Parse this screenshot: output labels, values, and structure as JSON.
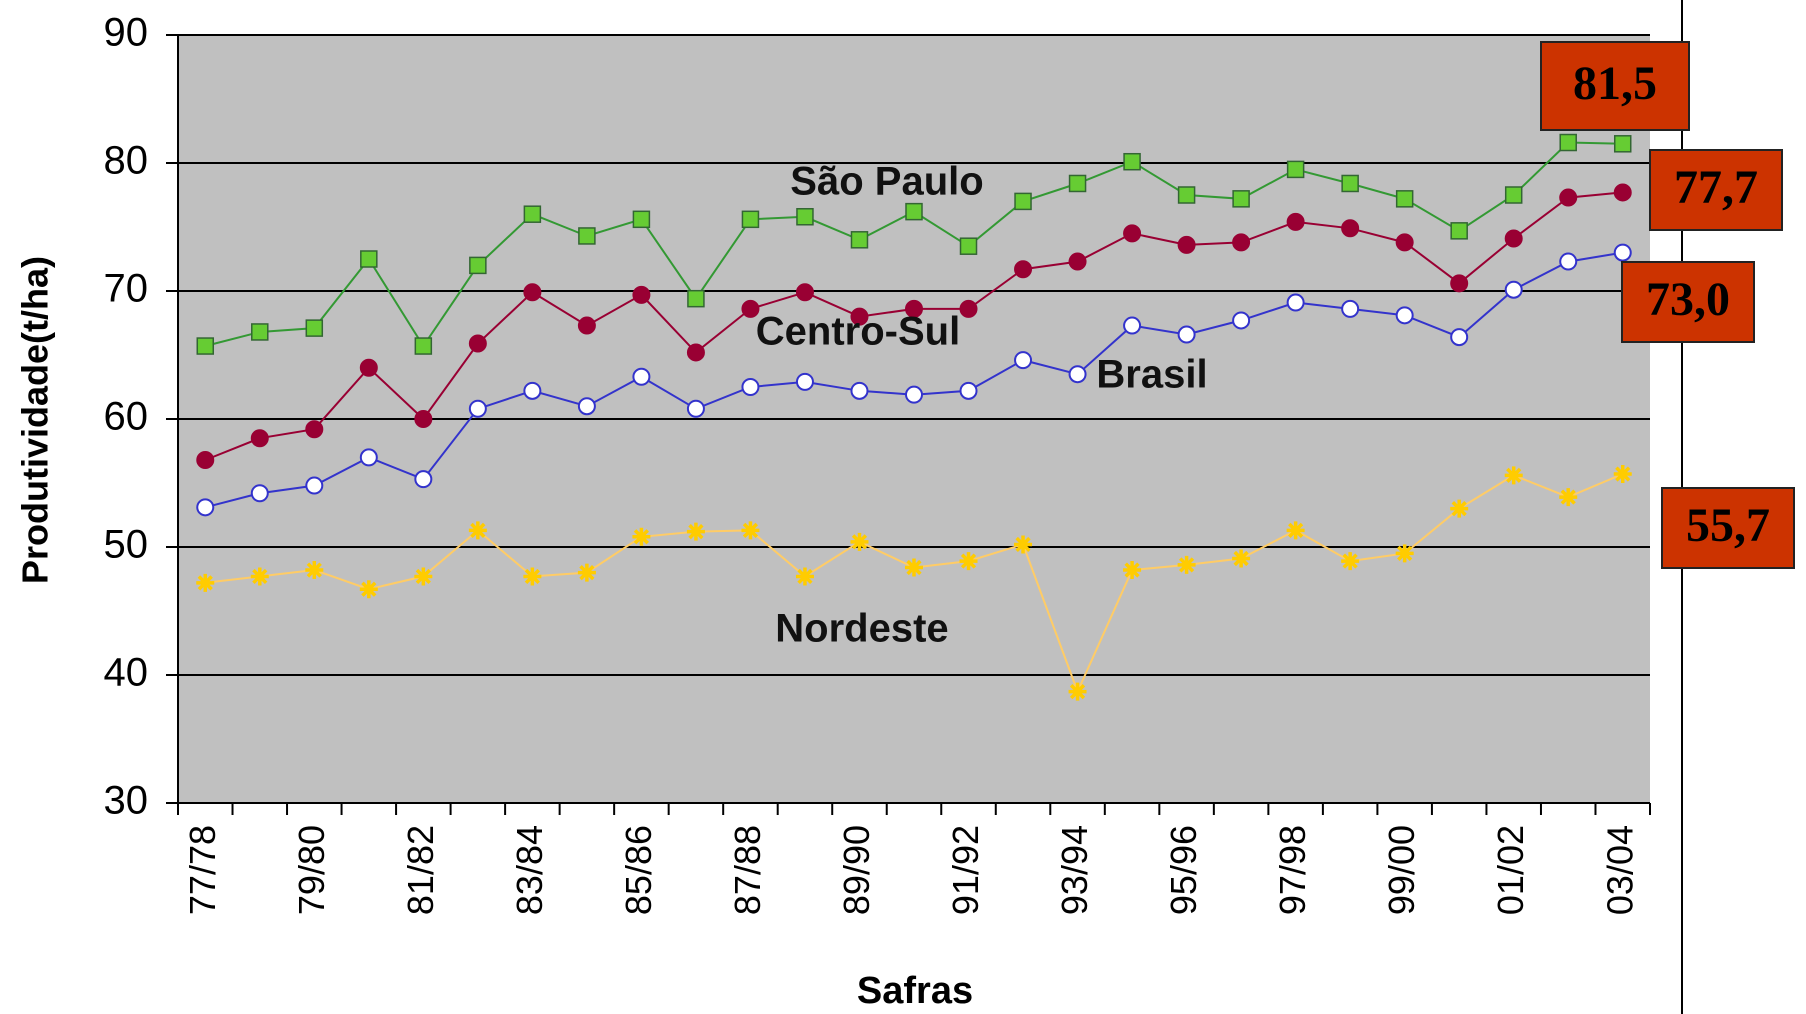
{
  "chart_data": {
    "type": "line",
    "x_label": "Safras",
    "y_label": "Produtividade(t/ha)",
    "categories": [
      "77/78",
      null,
      "79/80",
      null,
      "81/82",
      null,
      "83/84",
      null,
      "85/86",
      null,
      "87/88",
      null,
      "89/90",
      null,
      "91/92",
      null,
      "93/94",
      null,
      "95/96",
      null,
      "97/98",
      null,
      "99/00",
      null,
      "01/02",
      null,
      "03/04"
    ],
    "ylim": [
      30,
      90
    ],
    "yticks": [
      30,
      40,
      50,
      60,
      70,
      80,
      90
    ],
    "grid": true,
    "series": [
      {
        "name": "São Paulo",
        "color": "#339933",
        "marker": "square",
        "marker_color": "#66cc33",
        "values": [
          65.7,
          66.8,
          67.1,
          72.5,
          65.7,
          72.0,
          76.0,
          74.3,
          75.6,
          69.4,
          75.6,
          75.8,
          74.0,
          76.2,
          73.5,
          77.0,
          78.4,
          80.1,
          77.5,
          77.2,
          79.5,
          78.4,
          77.2,
          74.7,
          77.5,
          81.6,
          81.5
        ],
        "value_labels": [
          null,
          null,
          null,
          null,
          null,
          null,
          null,
          null,
          null,
          null,
          null,
          null,
          null,
          null,
          null,
          null,
          null,
          null,
          null,
          null,
          null,
          null,
          null,
          null,
          null,
          null,
          "81,5"
        ]
      },
      {
        "name": "Centro-Sul",
        "color": "#990033",
        "marker": "circle",
        "marker_color": "#990033",
        "values": [
          56.8,
          58.5,
          59.2,
          64.0,
          60.0,
          65.9,
          69.9,
          67.3,
          69.7,
          65.2,
          68.6,
          69.9,
          68.0,
          68.6,
          68.6,
          71.7,
          72.3,
          74.5,
          73.6,
          73.8,
          75.4,
          74.9,
          73.8,
          70.6,
          74.1,
          77.3,
          77.7
        ],
        "value_labels": [
          null,
          null,
          null,
          null,
          null,
          null,
          null,
          null,
          null,
          null,
          null,
          null,
          null,
          null,
          null,
          null,
          null,
          null,
          null,
          null,
          null,
          null,
          null,
          null,
          null,
          null,
          "77,7"
        ]
      },
      {
        "name": "Brasil",
        "color": "#3333cc",
        "marker": "circle",
        "marker_color": "#ffffff",
        "values": [
          53.1,
          54.2,
          54.8,
          57.0,
          55.3,
          60.8,
          62.2,
          61.0,
          63.3,
          60.8,
          62.5,
          62.9,
          62.2,
          61.9,
          62.2,
          64.6,
          63.5,
          67.3,
          66.6,
          67.7,
          69.1,
          68.6,
          68.1,
          66.4,
          70.1,
          72.3,
          73.0
        ],
        "value_labels": [
          null,
          null,
          null,
          null,
          null,
          null,
          null,
          null,
          null,
          null,
          null,
          null,
          null,
          null,
          null,
          null,
          null,
          null,
          null,
          null,
          null,
          null,
          null,
          null,
          null,
          null,
          "73,0"
        ]
      },
      {
        "name": "Nordeste",
        "color": "#ffcc66",
        "marker": "star",
        "marker_color": "#ffcc00",
        "values": [
          47.2,
          47.7,
          48.2,
          46.7,
          47.7,
          51.3,
          47.7,
          48.0,
          50.8,
          51.2,
          51.3,
          47.7,
          50.4,
          48.4,
          48.9,
          50.2,
          38.7,
          48.2,
          48.6,
          49.1,
          51.3,
          48.9,
          49.5,
          53.0,
          55.6,
          53.9,
          55.7
        ],
        "value_labels": [
          null,
          null,
          null,
          null,
          null,
          null,
          null,
          null,
          null,
          null,
          null,
          null,
          null,
          null,
          null,
          null,
          null,
          null,
          null,
          null,
          null,
          null,
          null,
          null,
          null,
          null,
          "55,7"
        ]
      }
    ]
  }
}
